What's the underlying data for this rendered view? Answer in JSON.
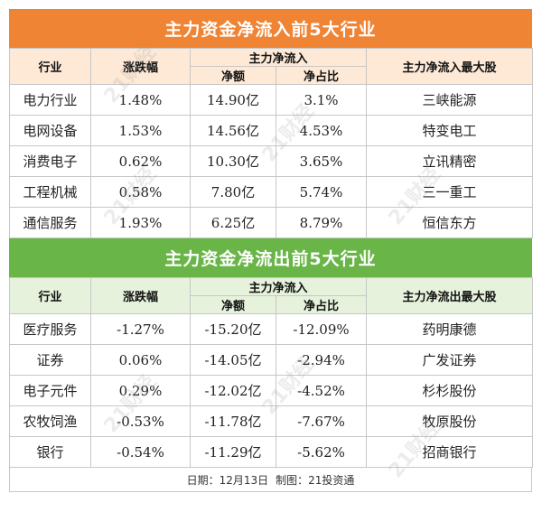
{
  "inflow": {
    "title": "主力资金净流入前5大行业",
    "headers": {
      "industry": "行业",
      "change": "涨跌幅",
      "group": "主力净流入",
      "net": "净额",
      "ratio": "净占比",
      "top_stock": "主力净流入最大股"
    },
    "rows": [
      {
        "industry": "电力行业",
        "change": "1.48%",
        "net": "14.90亿",
        "ratio": "3.1%",
        "stock": "三峡能源"
      },
      {
        "industry": "电网设备",
        "change": "1.53%",
        "net": "14.56亿",
        "ratio": "4.53%",
        "stock": "特变电工"
      },
      {
        "industry": "消费电子",
        "change": "0.62%",
        "net": "10.30亿",
        "ratio": "3.65%",
        "stock": "立讯精密"
      },
      {
        "industry": "工程机械",
        "change": "0.58%",
        "net": "7.80亿",
        "ratio": "5.74%",
        "stock": "三一重工"
      },
      {
        "industry": "通信服务",
        "change": "1.93%",
        "net": "6.25亿",
        "ratio": "8.79%",
        "stock": "恒信东方"
      }
    ]
  },
  "outflow": {
    "title": "主力资金净流出前5大行业",
    "headers": {
      "industry": "行业",
      "change": "涨跌幅",
      "group": "主力净流入",
      "net": "净额",
      "ratio": "净占比",
      "top_stock": "主力净流出最大股"
    },
    "rows": [
      {
        "industry": "医疗服务",
        "change": "-1.27%",
        "net": "-15.20亿",
        "ratio": "-12.09%",
        "stock": "药明康德"
      },
      {
        "industry": "证券",
        "change": "0.06%",
        "net": "-14.05亿",
        "ratio": "-2.94%",
        "stock": "广发证券"
      },
      {
        "industry": "电子元件",
        "change": "0.29%",
        "net": "-12.02亿",
        "ratio": "-4.52%",
        "stock": "杉杉股份"
      },
      {
        "industry": "农牧饲渔",
        "change": "-0.53%",
        "net": "-11.78亿",
        "ratio": "-7.67%",
        "stock": "牧原股份"
      },
      {
        "industry": "银行",
        "change": "-0.54%",
        "net": "-11.29亿",
        "ratio": "-5.62%",
        "stock": "招商银行"
      }
    ]
  },
  "footer": {
    "date": "日期：12月13日",
    "credit": "制图：21投资通"
  },
  "watermark": "21财经",
  "colors": {
    "inflow_title_bg": "#ef8435",
    "outflow_title_bg": "#69b548",
    "inflow_header_bg": "#fde9d6",
    "outflow_header_bg": "#e6f2dc"
  }
}
